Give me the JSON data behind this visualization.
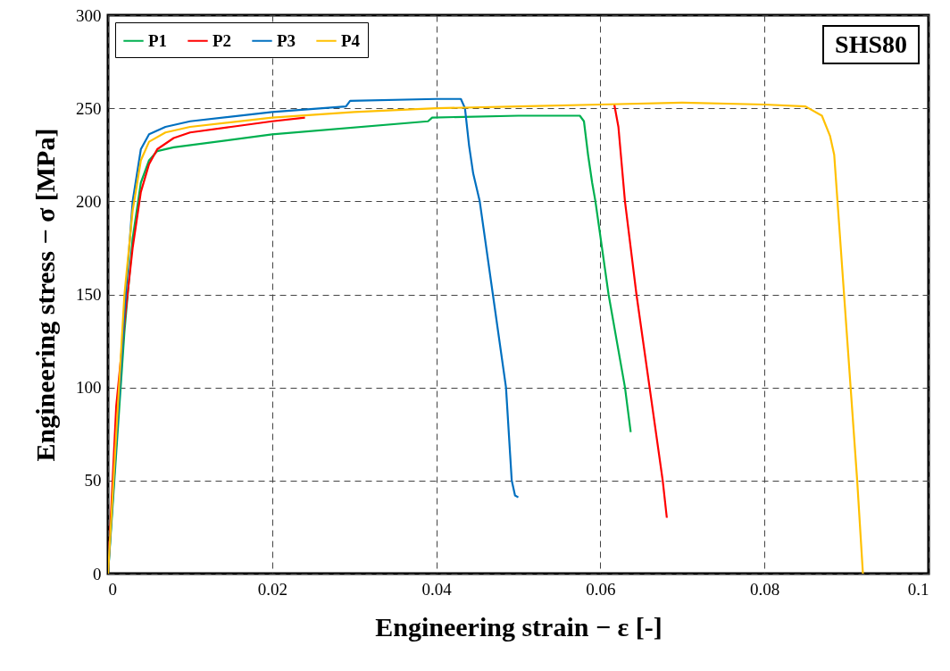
{
  "chart_data": {
    "type": "line",
    "xlabel": "Engineering strain − ε [-]",
    "ylabel": "Engineering stress − σ [MPa]",
    "xlim": [
      0,
      0.1
    ],
    "xticks": [
      0,
      0.02,
      0.04,
      0.06,
      0.08,
      0.1
    ],
    "ylim": [
      0,
      300
    ],
    "yticks": [
      0,
      50,
      100,
      150,
      200,
      250,
      300
    ],
    "grid": true,
    "legend": "top left",
    "line_style": "solid",
    "annotations": [
      "SHS80"
    ],
    "series": [
      {
        "name": "P1",
        "color": "#00b050",
        "x": [
          0,
          0.002,
          0.003,
          0.004,
          0.005,
          0.006,
          0.008,
          0.02,
          0.039,
          0.0395,
          0.05,
          0.0575,
          0.058,
          0.0585,
          0.059,
          0.0594,
          0.061,
          0.062,
          0.063,
          0.0637
        ],
        "values": [
          0,
          130,
          180,
          210,
          222,
          227,
          229,
          236,
          243,
          245,
          246,
          246,
          243,
          225,
          210,
          200,
          150,
          125,
          100,
          76
        ]
      },
      {
        "name": "P2",
        "color": "#ff0000",
        "x": [
          0,
          0.001,
          0.002,
          0.003,
          0.004,
          0.005,
          0.006,
          0.008,
          0.01,
          0.015,
          0.02,
          0.024,
          0.03,
          0.0617,
          0.0622,
          0.063,
          0.0644,
          0.066,
          0.0676,
          0.0681
        ],
        "values": [
          0,
          90,
          135,
          175,
          205,
          220,
          228,
          234,
          237,
          240,
          243,
          245,
          null,
          252,
          240,
          200,
          150,
          100,
          50,
          30
        ]
      },
      {
        "name": "P3",
        "color": "#0070c0",
        "x": [
          0,
          0.002,
          0.003,
          0.004,
          0.005,
          0.007,
          0.01,
          0.02,
          0.029,
          0.0295,
          0.04,
          0.043,
          0.0435,
          0.044,
          0.0445,
          0.0453,
          0.0469,
          0.0485,
          0.0492,
          0.0496,
          0.05
        ],
        "values": [
          0,
          140,
          200,
          228,
          236,
          240,
          243,
          248,
          251,
          254,
          255,
          255,
          250,
          230,
          215,
          200,
          150,
          100,
          50,
          42,
          41
        ]
      },
      {
        "name": "P4",
        "color": "#ffc000",
        "x": [
          0,
          0.002,
          0.003,
          0.004,
          0.005,
          0.007,
          0.01,
          0.02,
          0.03,
          0.04,
          0.05,
          0.06,
          0.07,
          0.08,
          0.085,
          0.087,
          0.088,
          0.0885,
          0.0889,
          0.0897,
          0.0905,
          0.0913,
          0.092
        ],
        "values": [
          0,
          150,
          195,
          222,
          232,
          237,
          240,
          245,
          248,
          250,
          251,
          252,
          253,
          252,
          251,
          246,
          235,
          225,
          200,
          150,
          100,
          50,
          0
        ]
      }
    ]
  }
}
